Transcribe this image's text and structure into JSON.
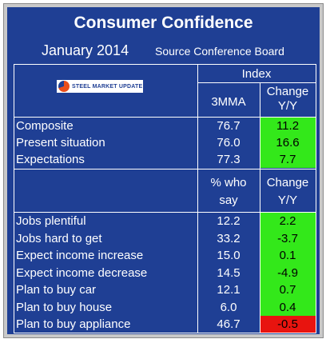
{
  "title": "Consumer Confidence",
  "subtitle": {
    "month": "January 2014",
    "source": "Source Conference Board"
  },
  "logo_text": "STEEL MARKET UPDATE",
  "index_header": "Index",
  "header1": {
    "col1": "3MMA",
    "col2a": "Change",
    "col2b": "Y/Y"
  },
  "header2": {
    "col1a": "% who",
    "col1b": "say",
    "col2a": "Change",
    "col2b": "Y/Y"
  },
  "colors": {
    "positive": "#33e81a",
    "negative": "#e8140f",
    "panel": "#1f3f94"
  },
  "section1": [
    {
      "label": "Composite",
      "value": "76.7",
      "change": "11.2",
      "sign": "pos"
    },
    {
      "label": "Present situation",
      "value": "76.0",
      "change": "16.6",
      "sign": "pos"
    },
    {
      "label": "Expectations",
      "value": "77.3",
      "change": "7.7",
      "sign": "pos"
    }
  ],
  "section2": [
    {
      "label": "Jobs plentiful",
      "value": "12.2",
      "change": "2.2",
      "sign": "pos"
    },
    {
      "label": "Jobs hard to get",
      "value": "33.2",
      "change": "-3.7",
      "sign": "pos"
    },
    {
      "label": "Expect income increase",
      "value": "15.0",
      "change": "0.1",
      "sign": "pos"
    },
    {
      "label": "Expect income decrease",
      "value": "14.5",
      "change": "-4.9",
      "sign": "pos"
    },
    {
      "label": "Plan to buy car",
      "value": "12.1",
      "change": "0.7",
      "sign": "pos"
    },
    {
      "label": "Plan to buy house",
      "value": "6.0",
      "change": "0.4",
      "sign": "pos"
    },
    {
      "label": "Plan to buy appliance",
      "value": "46.7",
      "change": "-0.5",
      "sign": "neg"
    }
  ]
}
